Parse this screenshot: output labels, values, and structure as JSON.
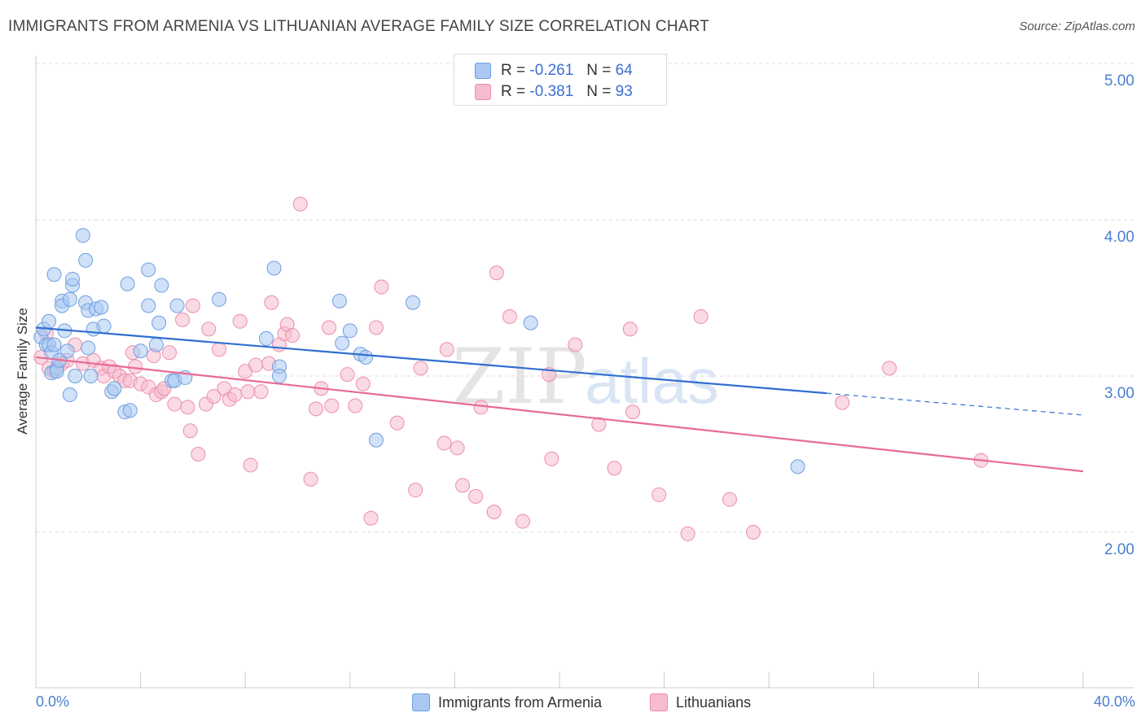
{
  "header": {
    "title": "IMMIGRANTS FROM ARMENIA VS LITHUANIAN AVERAGE FAMILY SIZE CORRELATION CHART",
    "source": "Source: ZipAtlas.com"
  },
  "legend": {
    "rows": [
      {
        "r_label": "R =",
        "r_value": "-0.261",
        "n_label": "N =",
        "n_value": "64"
      },
      {
        "r_label": "R =",
        "r_value": "-0.381",
        "n_label": "N =",
        "n_value": "93"
      }
    ],
    "bottom": [
      {
        "label": "Immigrants from Armenia"
      },
      {
        "label": "Lithuanians"
      }
    ]
  },
  "watermark": {
    "zip": "ZIP",
    "atlas": "atlas"
  },
  "colors": {
    "blue_fill": "#a9c8f2",
    "blue_stroke": "#6f9fe0",
    "blue_line": "#2f6fd1",
    "pink_fill": "#f6bccd",
    "pink_stroke": "#ec8eab",
    "pink_line": "#e76b93",
    "tick_text": "#4a7fcf",
    "grid": "#dddddd"
  },
  "chart_data": {
    "type": "scatter",
    "title": "IMMIGRANTS FROM ARMENIA VS LITHUANIAN AVERAGE FAMILY SIZE CORRELATION CHART",
    "xlabel": "",
    "ylabel": "Average Family Size",
    "xlim": [
      0,
      40
    ],
    "ylim": [
      1.0,
      5.1
    ],
    "x_tick_labels": [
      "0.0%",
      "40.0%"
    ],
    "y_ticks": [
      2.0,
      3.0,
      4.0,
      5.0
    ],
    "y_tick_labels": [
      "2.00",
      "3.00",
      "4.00",
      "5.00"
    ],
    "grid": true,
    "legend_position": "top-center",
    "series": [
      {
        "name": "Immigrants from Armenia",
        "r": -0.261,
        "n": 64,
        "trend": {
          "x": [
            0.0,
            30.2
          ],
          "y": [
            3.31,
            2.89
          ]
        },
        "trend_extension": {
          "x": [
            30.2,
            40.0
          ],
          "y": [
            2.89,
            2.75
          ]
        },
        "points": [
          [
            0.2,
            3.25
          ],
          [
            0.3,
            3.3
          ],
          [
            0.4,
            3.2
          ],
          [
            0.5,
            3.35
          ],
          [
            0.5,
            3.2
          ],
          [
            0.6,
            3.15
          ],
          [
            0.6,
            3.02
          ],
          [
            0.7,
            3.65
          ],
          [
            0.7,
            3.2
          ],
          [
            0.8,
            3.05
          ],
          [
            0.8,
            3.03
          ],
          [
            0.9,
            3.1
          ],
          [
            1.0,
            3.48
          ],
          [
            1.0,
            3.45
          ],
          [
            1.1,
            3.29
          ],
          [
            1.2,
            3.16
          ],
          [
            1.3,
            2.88
          ],
          [
            1.3,
            3.49
          ],
          [
            1.4,
            3.58
          ],
          [
            1.4,
            3.62
          ],
          [
            1.5,
            3.0
          ],
          [
            1.8,
            3.9
          ],
          [
            1.9,
            3.74
          ],
          [
            1.9,
            3.47
          ],
          [
            2.0,
            3.18
          ],
          [
            2.0,
            3.42
          ],
          [
            2.1,
            3.0
          ],
          [
            2.2,
            3.3
          ],
          [
            2.3,
            3.43
          ],
          [
            2.5,
            3.44
          ],
          [
            2.6,
            3.32
          ],
          [
            2.9,
            2.9
          ],
          [
            3.0,
            2.92
          ],
          [
            3.4,
            2.77
          ],
          [
            3.5,
            3.59
          ],
          [
            3.6,
            2.78
          ],
          [
            4.0,
            3.16
          ],
          [
            4.3,
            3.45
          ],
          [
            4.3,
            3.68
          ],
          [
            4.6,
            3.2
          ],
          [
            4.7,
            3.34
          ],
          [
            4.8,
            3.58
          ],
          [
            5.2,
            2.97
          ],
          [
            5.3,
            2.97
          ],
          [
            5.4,
            3.45
          ],
          [
            5.7,
            2.99
          ],
          [
            7.0,
            3.49
          ],
          [
            8.8,
            3.24
          ],
          [
            9.1,
            3.69
          ],
          [
            9.3,
            3.06
          ],
          [
            9.3,
            3.0
          ],
          [
            11.6,
            3.48
          ],
          [
            11.7,
            3.21
          ],
          [
            12.0,
            3.29
          ],
          [
            12.4,
            3.14
          ],
          [
            12.6,
            3.12
          ],
          [
            13.0,
            2.59
          ],
          [
            14.4,
            3.47
          ],
          [
            18.9,
            3.34
          ],
          [
            29.1,
            2.42
          ]
        ]
      },
      {
        "name": "Lithuanians",
        "r": -0.381,
        "n": 93,
        "trend": {
          "x": [
            0.0,
            40.0
          ],
          "y": [
            3.12,
            2.39
          ]
        },
        "points": [
          [
            0.2,
            3.12
          ],
          [
            0.4,
            3.27
          ],
          [
            0.5,
            3.05
          ],
          [
            0.7,
            3.03
          ],
          [
            1.0,
            3.08
          ],
          [
            1.2,
            3.1
          ],
          [
            1.5,
            3.2
          ],
          [
            1.8,
            3.08
          ],
          [
            2.2,
            3.1
          ],
          [
            2.5,
            3.05
          ],
          [
            2.6,
            3.0
          ],
          [
            2.8,
            3.06
          ],
          [
            3.0,
            3.03
          ],
          [
            3.2,
            3.0
          ],
          [
            3.4,
            2.97
          ],
          [
            3.6,
            2.97
          ],
          [
            3.7,
            3.15
          ],
          [
            3.8,
            3.06
          ],
          [
            4.0,
            2.95
          ],
          [
            4.3,
            2.93
          ],
          [
            4.5,
            3.13
          ],
          [
            4.6,
            2.88
          ],
          [
            4.8,
            2.9
          ],
          [
            4.9,
            2.92
          ],
          [
            5.1,
            3.15
          ],
          [
            5.3,
            2.82
          ],
          [
            5.6,
            3.36
          ],
          [
            5.8,
            2.8
          ],
          [
            5.9,
            2.65
          ],
          [
            6.0,
            3.45
          ],
          [
            6.2,
            2.5
          ],
          [
            6.5,
            2.82
          ],
          [
            6.6,
            3.3
          ],
          [
            6.8,
            2.87
          ],
          [
            7.0,
            3.17
          ],
          [
            7.2,
            2.92
          ],
          [
            7.4,
            2.85
          ],
          [
            7.6,
            2.88
          ],
          [
            7.8,
            3.35
          ],
          [
            8.0,
            3.03
          ],
          [
            8.1,
            2.9
          ],
          [
            8.2,
            2.43
          ],
          [
            8.4,
            3.07
          ],
          [
            8.6,
            2.9
          ],
          [
            8.9,
            3.08
          ],
          [
            9.0,
            3.47
          ],
          [
            9.3,
            3.2
          ],
          [
            9.5,
            3.27
          ],
          [
            9.6,
            3.33
          ],
          [
            9.8,
            3.26
          ],
          [
            10.1,
            4.1
          ],
          [
            10.5,
            2.34
          ],
          [
            10.7,
            2.79
          ],
          [
            10.9,
            2.92
          ],
          [
            11.2,
            3.31
          ],
          [
            11.3,
            2.81
          ],
          [
            11.9,
            3.01
          ],
          [
            12.2,
            2.81
          ],
          [
            12.5,
            2.95
          ],
          [
            12.8,
            2.09
          ],
          [
            13.0,
            3.31
          ],
          [
            13.2,
            3.57
          ],
          [
            13.8,
            2.7
          ],
          [
            14.5,
            2.27
          ],
          [
            14.7,
            3.05
          ],
          [
            15.6,
            2.57
          ],
          [
            15.7,
            3.17
          ],
          [
            16.1,
            2.54
          ],
          [
            16.3,
            2.3
          ],
          [
            16.8,
            2.23
          ],
          [
            17.0,
            2.8
          ],
          [
            17.5,
            2.13
          ],
          [
            17.6,
            3.66
          ],
          [
            18.1,
            3.38
          ],
          [
            18.6,
            2.07
          ],
          [
            19.6,
            3.01
          ],
          [
            19.7,
            2.47
          ],
          [
            20.6,
            3.2
          ],
          [
            21.5,
            2.69
          ],
          [
            22.1,
            2.41
          ],
          [
            22.7,
            3.3
          ],
          [
            22.8,
            2.77
          ],
          [
            23.8,
            2.24
          ],
          [
            24.9,
            1.99
          ],
          [
            25.4,
            3.38
          ],
          [
            26.5,
            2.21
          ],
          [
            27.4,
            2.0
          ],
          [
            30.8,
            2.83
          ],
          [
            32.6,
            3.05
          ],
          [
            36.1,
            2.46
          ]
        ]
      }
    ]
  }
}
